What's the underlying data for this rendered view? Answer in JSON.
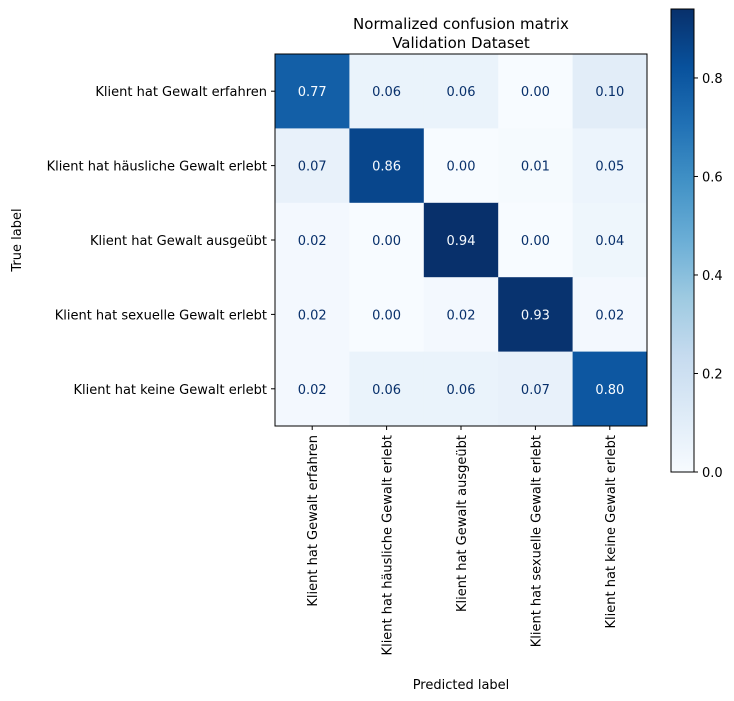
{
  "chart_data": {
    "type": "heatmap",
    "title": [
      "Normalized confusion matrix",
      "Validation Dataset"
    ],
    "xlabel": "Predicted label",
    "ylabel": "True label",
    "labels": [
      "Klient hat Gewalt erfahren",
      "Klient hat häusliche Gewalt erlebt",
      "Klient hat Gewalt ausgeübt",
      "Klient hat sexuelle Gewalt erlebt",
      "Klient hat keine Gewalt erlebt"
    ],
    "values": [
      [
        0.77,
        0.06,
        0.06,
        0.0,
        0.1
      ],
      [
        0.07,
        0.86,
        0.0,
        0.01,
        0.05
      ],
      [
        0.02,
        0.0,
        0.94,
        0.0,
        0.04
      ],
      [
        0.02,
        0.0,
        0.02,
        0.93,
        0.02
      ],
      [
        0.02,
        0.06,
        0.06,
        0.07,
        0.8
      ]
    ],
    "colormap": "Blues",
    "colorbar": {
      "range": [
        0.0,
        0.94
      ],
      "ticks": [
        0.0,
        0.2,
        0.4,
        0.6,
        0.8
      ],
      "tick_labels": [
        "0.0",
        "0.2",
        "0.4",
        "0.6",
        "0.8"
      ]
    }
  }
}
